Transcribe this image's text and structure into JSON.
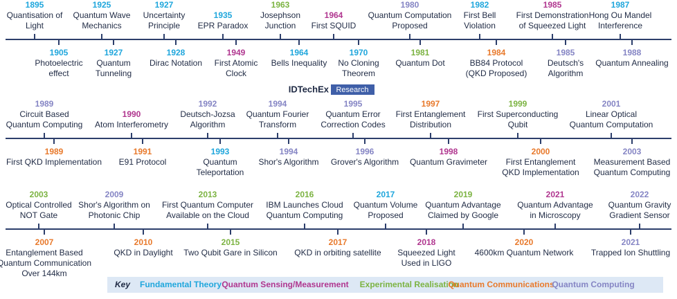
{
  "logo": {
    "name": "IDTechEx",
    "tag": "Research"
  },
  "rows": [
    {
      "above": [
        {
          "year": "1895",
          "color": "#1fa6dc",
          "lines": [
            "Quantisation of",
            "Light"
          ]
        },
        {
          "year": "1925",
          "color": "#1fa6dc",
          "lines": [
            "Quantum Wave",
            "Mechanics"
          ]
        },
        {
          "year": "1927",
          "color": "#1fa6dc",
          "lines": [
            "Uncertainty",
            "Principle"
          ]
        },
        {
          "year": "1935",
          "color": "#1fa6dc",
          "lines": [
            "EPR Paradox"
          ]
        },
        {
          "year": "1963",
          "color": "#7cb342",
          "lines": [
            "Josephson",
            "Junction"
          ]
        },
        {
          "year": "1964",
          "color": "#b0368f",
          "lines": [
            "First SQUID"
          ]
        },
        {
          "year": "1980",
          "color": "#8585c4",
          "lines": [
            "Quantum Computation",
            "Proposed"
          ]
        },
        {
          "year": "1982",
          "color": "#1fa6dc",
          "lines": [
            "First Bell",
            "Violation"
          ]
        },
        {
          "year": "1985",
          "color": "#b0368f",
          "lines": [
            "First Demonstration",
            "of Squeezed Light"
          ]
        },
        {
          "year": "1987",
          "color": "#1fa6dc",
          "lines": [
            "Hong Ou Mandel",
            "Interference"
          ]
        }
      ],
      "below": [
        {
          "year": "1905",
          "color": "#1fa6dc",
          "lines": [
            "Photoelectric",
            "effect"
          ]
        },
        {
          "year": "1927",
          "color": "#1fa6dc",
          "lines": [
            "Quantum",
            "Tunneling"
          ]
        },
        {
          "year": "1928",
          "color": "#1fa6dc",
          "lines": [
            "Dirac Notation"
          ]
        },
        {
          "year": "1949",
          "color": "#b0368f",
          "lines": [
            "First Atomic",
            "Clock"
          ]
        },
        {
          "year": "1964",
          "color": "#1fa6dc",
          "lines": [
            "Bells Inequality"
          ]
        },
        {
          "year": "1970",
          "color": "#1fa6dc",
          "lines": [
            "No Cloning",
            "Theorem"
          ]
        },
        {
          "year": "1981",
          "color": "#7cb342",
          "lines": [
            "Quantum Dot"
          ]
        },
        {
          "year": "1984",
          "color": "#e8792b",
          "lines": [
            "BB84 Protocol",
            "(QKD Proposed)"
          ]
        },
        {
          "year": "1985",
          "color": "#8585c4",
          "lines": [
            "Deutsch's",
            "Algorithm"
          ]
        },
        {
          "year": "1988",
          "color": "#8585c4",
          "lines": [
            "Quantum Annealing"
          ]
        }
      ]
    },
    {
      "above": [
        {
          "year": "1989",
          "color": "#8585c4",
          "lines": [
            "Circuit Based",
            "Quantum Computing"
          ]
        },
        {
          "year": "1990",
          "color": "#b0368f",
          "lines": [
            "Atom Interferometry"
          ]
        },
        {
          "year": "1992",
          "color": "#8585c4",
          "lines": [
            "Deutsch-Jozsa",
            "Algorithm"
          ]
        },
        {
          "year": "1994",
          "color": "#8585c4",
          "lines": [
            "Quantum Fourier",
            "Transform"
          ]
        },
        {
          "year": "1995",
          "color": "#8585c4",
          "lines": [
            "Quantum Error",
            "Correction Codes"
          ]
        },
        {
          "year": "1997",
          "color": "#e8792b",
          "lines": [
            "First Entanglement",
            "Distribution"
          ]
        },
        {
          "year": "1999",
          "color": "#7cb342",
          "lines": [
            "First Superconducting",
            "Qubit"
          ]
        },
        {
          "year": "2001",
          "color": "#8585c4",
          "lines": [
            "Linear Optical",
            "Quantum Computation"
          ]
        }
      ],
      "below": [
        {
          "year": "1989",
          "color": "#e8792b",
          "lines": [
            "First QKD Implementation"
          ]
        },
        {
          "year": "1991",
          "color": "#e8792b",
          "lines": [
            "E91 Protocol"
          ]
        },
        {
          "year": "1993",
          "color": "#1fa6dc",
          "lines": [
            "Quantum",
            "Teleportation"
          ]
        },
        {
          "year": "1994",
          "color": "#8585c4",
          "lines": [
            "Shor's Algorithm"
          ]
        },
        {
          "year": "1996",
          "color": "#8585c4",
          "lines": [
            "Grover's Algorithm"
          ]
        },
        {
          "year": "1998",
          "color": "#b0368f",
          "lines": [
            "Quantum Gravimeter"
          ]
        },
        {
          "year": "2000",
          "color": "#e8792b",
          "lines": [
            "First Entanglement",
            "QKD Implementation"
          ]
        },
        {
          "year": "2003",
          "color": "#8585c4",
          "lines": [
            "Measurement Based",
            "Quantum Computing"
          ]
        }
      ]
    },
    {
      "above": [
        {
          "year": "2003",
          "color": "#7cb342",
          "lines": [
            "Optical Controlled",
            "NOT Gate"
          ]
        },
        {
          "year": "2009",
          "color": "#8585c4",
          "lines": [
            "Shor's Algorithm on",
            "Photonic Chip"
          ]
        },
        {
          "year": "2013",
          "color": "#7cb342",
          "lines": [
            "First Quantum Computer",
            "Available on the Cloud"
          ]
        },
        {
          "year": "2016",
          "color": "#7cb342",
          "lines": [
            "IBM Launches Cloud",
            "Quantum Computing"
          ]
        },
        {
          "year": "2017",
          "color": "#1fa6dc",
          "lines": [
            "Quantum Volume",
            "Proposed"
          ]
        },
        {
          "year": "2019",
          "color": "#7cb342",
          "lines": [
            "Quantum Advantage",
            "Claimed by Google"
          ]
        },
        {
          "year": "2021",
          "color": "#b0368f",
          "lines": [
            "Quantum Advantage",
            "in Microscopy"
          ]
        },
        {
          "year": "2022",
          "color": "#8585c4",
          "lines": [
            "Quantum Gravity",
            "Gradient Sensor"
          ]
        }
      ],
      "below": [
        {
          "year": "2007",
          "color": "#e8792b",
          "lines": [
            "Entanglement Based",
            "Quantum Communication",
            "Over 144km"
          ]
        },
        {
          "year": "2010",
          "color": "#e8792b",
          "lines": [
            "QKD in Daylight"
          ]
        },
        {
          "year": "2015",
          "color": "#7cb342",
          "lines": [
            "Two Qubit Gare in Silicon"
          ]
        },
        {
          "year": "2017",
          "color": "#e8792b",
          "lines": [
            "QKD in orbiting satellite"
          ]
        },
        {
          "year": "2018",
          "color": "#b0368f",
          "lines": [
            "Squeezed Light",
            "Used in LIGO"
          ]
        },
        {
          "year": "2020",
          "color": "#e8792b",
          "lines": [
            "4600km Quantum Network"
          ]
        },
        {
          "year": "2021",
          "color": "#8585c4",
          "lines": [
            "Trapped Ion Shuttling"
          ]
        }
      ]
    }
  ],
  "key": {
    "title": "Key",
    "items": [
      {
        "label": "Fundamental Theory",
        "color": "#1fa6dc"
      },
      {
        "label": "Quantum Sensing/Measurement",
        "color": "#b0368f"
      },
      {
        "label": "Experimental Realisation",
        "color": "#7cb342"
      },
      {
        "label": "Quantum Communications",
        "color": "#e8792b"
      },
      {
        "label": "Quantum Computing",
        "color": "#8585c4"
      }
    ]
  }
}
